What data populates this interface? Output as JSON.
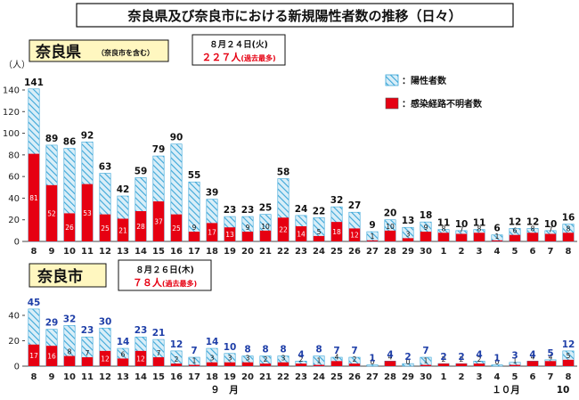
{
  "title": "奈良県及び奈良市における新規陽性者数の推移（日々）",
  "colors": {
    "red": "#e60012",
    "hatch_line": "#3aa6d8",
    "hatch_bg": "#d9eef8",
    "blue_label": "#1f3fa8"
  },
  "charts": {
    "pref": {
      "label": "奈良県",
      "note": "（奈良市を含む）",
      "date_text": "８月２４日(火)",
      "count_text": "２２７人",
      "record_text": "(過去最多)"
    },
    "city": {
      "label": "奈良市",
      "date_text": "８月２６日(木)",
      "count_text": "７８人",
      "record_text": "(過去最多)"
    }
  },
  "legend": {
    "total": "：陽性者数",
    "unknown": "：感染経路不明者数"
  },
  "months": {
    "sep": "９　月",
    "oct": "１０月"
  },
  "chart_data": [
    {
      "type": "bar",
      "unit_label": "（人）",
      "ylim": [
        0,
        140
      ],
      "yticks": [
        0,
        20,
        40,
        60,
        80,
        100,
        120,
        140
      ],
      "categories": [
        "8",
        "9",
        "10",
        "11",
        "12",
        "13",
        "14",
        "15",
        "16",
        "17",
        "18",
        "19",
        "20",
        "21",
        "22",
        "23",
        "24",
        "25",
        "26",
        "27",
        "28",
        "29",
        "30",
        "1",
        "2",
        "3",
        "4",
        "5",
        "6",
        "7",
        "8"
      ],
      "series": [
        {
          "name": "陽性者数",
          "values": [
            141,
            89,
            86,
            92,
            63,
            42,
            59,
            79,
            90,
            55,
            39,
            23,
            23,
            25,
            58,
            24,
            22,
            32,
            27,
            9,
            20,
            13,
            18,
            11,
            10,
            11,
            6,
            12,
            12,
            10,
            16
          ]
        },
        {
          "name": "感染経路不明者数",
          "values": [
            81,
            52,
            26,
            53,
            25,
            21,
            28,
            37,
            25,
            9,
            17,
            13,
            9,
            10,
            22,
            14,
            5,
            18,
            12,
            1,
            10,
            3,
            9,
            8,
            7,
            8,
            1,
            6,
            8,
            7,
            8
          ]
        }
      ],
      "red_labels_shown": [
        81,
        52,
        26,
        53,
        25,
        21,
        28,
        37,
        25,
        9,
        17,
        13,
        9,
        10,
        22,
        14,
        5,
        18,
        12,
        1,
        10,
        3,
        9,
        8,
        7,
        8,
        1,
        6,
        8,
        7,
        8
      ]
    },
    {
      "type": "bar",
      "ylim": [
        0,
        40
      ],
      "yticks": [
        0,
        20,
        40
      ],
      "categories": [
        "8",
        "9",
        "10",
        "11",
        "12",
        "13",
        "14",
        "15",
        "16",
        "17",
        "18",
        "19",
        "20",
        "21",
        "22",
        "23",
        "24",
        "25",
        "26",
        "27",
        "28",
        "29",
        "30",
        "1",
        "2",
        "3",
        "4",
        "5",
        "6",
        "7",
        "8"
      ],
      "series": [
        {
          "name": "陽性者数",
          "values": [
            45,
            29,
            32,
            23,
            30,
            14,
            23,
            21,
            12,
            7,
            14,
            10,
            8,
            8,
            8,
            4,
            8,
            7,
            7,
            1,
            4,
            2,
            7,
            2,
            2,
            4,
            1,
            3,
            4,
            5,
            12
          ]
        },
        {
          "name": "感染経路不明者数",
          "values": [
            17,
            16,
            8,
            7,
            12,
            6,
            12,
            7,
            2,
            1,
            3,
            3,
            3,
            2,
            3,
            2,
            1,
            4,
            2,
            0,
            4,
            0,
            1,
            2,
            2,
            2,
            0,
            1,
            4,
            4,
            5
          ]
        }
      ]
    }
  ]
}
